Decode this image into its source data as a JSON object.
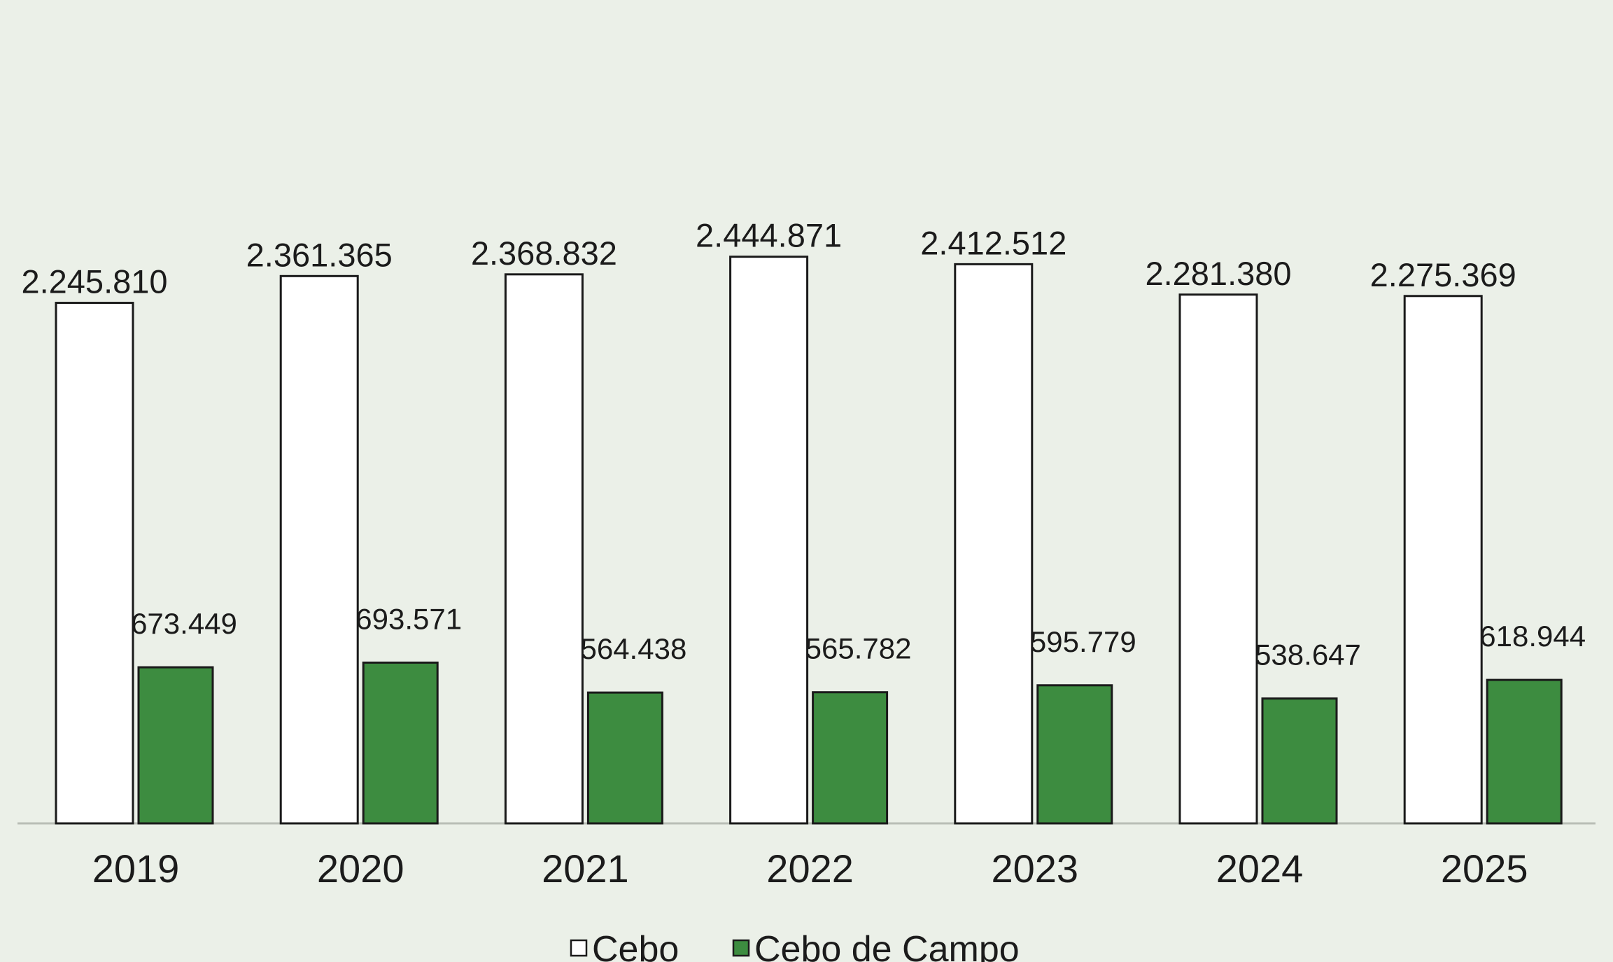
{
  "chart_data": {
    "type": "bar",
    "title": "",
    "xlabel": "",
    "ylabel": "",
    "categories": [
      "2019",
      "2020",
      "2021",
      "2022",
      "2023",
      "2024",
      "2025"
    ],
    "series": [
      {
        "name": "Cebo",
        "color": "#ffffff",
        "values": [
          2245810,
          2361365,
          2368832,
          2444871,
          2412512,
          2281380,
          2275369
        ],
        "labels": [
          "2.245.810",
          "2.361.365",
          "2.368.832",
          "2.444.871",
          "2.412.512",
          "2.281.380",
          "2.275.369"
        ]
      },
      {
        "name": "Cebo de Campo",
        "color": "#3d8c40",
        "values": [
          673449,
          693571,
          564438,
          565782,
          595779,
          538647,
          618944
        ],
        "labels": [
          "673.449",
          "693.571",
          "564.438",
          "565.782",
          "595.779",
          "538.647",
          "618.944"
        ]
      }
    ],
    "ylim": [
      0,
      2700000
    ],
    "grid": false,
    "legend_position": "bottom"
  },
  "colors": {
    "background": "#ebf0e8",
    "bar_outline": "#1a1a1a",
    "baseline": "#b9beb6"
  }
}
